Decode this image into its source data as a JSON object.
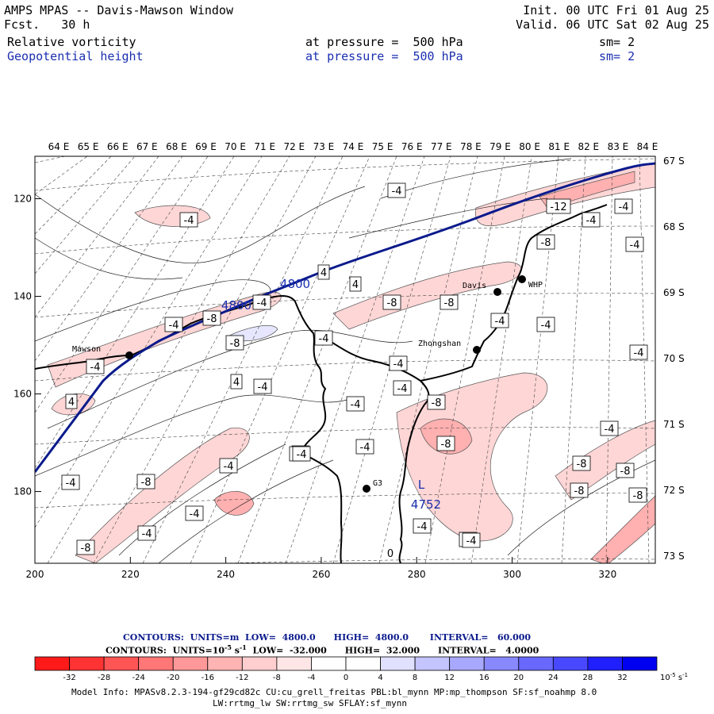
{
  "header": {
    "title": "AMPS MPAS -- Davis-Mawson Window",
    "fcst_label": "Fcst.",
    "fcst_value": "30 h",
    "init": "Init. 00 UTC Fri 01 Aug 25",
    "valid": "Valid. 06 UTC Sat 02 Aug 25",
    "field1": {
      "name": "Relative vorticity",
      "level": "at pressure =  500 hPa",
      "smooth": "sm= 2"
    },
    "field2": {
      "name": "Geopotential height",
      "level": "at pressure =  500 hPa",
      "smooth": "sm= 2"
    }
  },
  "axes": {
    "top_lon_labels": [
      "64 E",
      "65 E",
      "66 E",
      "67 E",
      "68 E",
      "69 E",
      "70 E",
      "71 E",
      "72 E",
      "73 E",
      "74 E",
      "75 E",
      "76 E",
      "77 E",
      "78 E",
      "79 E",
      "80 E",
      "81 E",
      "82 E",
      "83 E",
      "84 E"
    ],
    "right_lat_labels": [
      "67 S",
      "68 S",
      "69 S",
      "70 S",
      "71 S",
      "72 S",
      "73 S"
    ],
    "bottom_x_ticks": [
      200,
      220,
      240,
      260,
      280,
      300,
      320
    ],
    "left_y_ticks": [
      120,
      140,
      160,
      180
    ]
  },
  "stations": [
    {
      "name": "Mawson"
    },
    {
      "name": "Davis"
    },
    {
      "name": "WHP"
    },
    {
      "name": "Zhongshan"
    },
    {
      "name": "G3"
    }
  ],
  "height_labels": [
    "4800",
    "4800",
    "4752"
  ],
  "low_marker": "L",
  "vorticity_labels": [
    "-4",
    "-12",
    "-4",
    "-4",
    "-8",
    "-4",
    "-4",
    "4",
    "4",
    "-8",
    "-4",
    "-8",
    "-4",
    "-8",
    "-4",
    "4",
    "-4",
    "-4",
    "-4",
    "-8",
    "-4",
    "4",
    "-4",
    "-4",
    "-4",
    "-4",
    "-4",
    "-8",
    "-8",
    "-4",
    "-8",
    "-4",
    "-4",
    "-8",
    "-4",
    "-4",
    "-8",
    "-4",
    "-8",
    "-8",
    "-8",
    "-4",
    "-8",
    "-8",
    "-4",
    "0",
    "-4"
  ],
  "contour_info": {
    "line1": {
      "label": "CONTOURS:",
      "units": "UNITS=m",
      "low": "LOW=  4800.0",
      "high": "HIGH=  4800.0",
      "interval": "INTERVAL=   60.000"
    },
    "line2": {
      "label": "CONTOURS:",
      "units": "UNITS=10",
      "units_exp": "-5",
      "units_tail": " s",
      "units_tail_exp": "-1",
      "low": "LOW=  -32.000",
      "high": "HIGH=  32.000",
      "interval": "INTERVAL=   4.0000"
    }
  },
  "colorbar": {
    "colors": [
      "#ff1a1a",
      "#ff3333",
      "#ff5555",
      "#ff7777",
      "#ff9999",
      "#ffb4b4",
      "#ffcfcf",
      "#ffe6e6",
      "#ffffff",
      "#ffffff",
      "#e0e0ff",
      "#c4c4ff",
      "#a8a8ff",
      "#8888ff",
      "#6868ff",
      "#4848ff",
      "#2020ff",
      "#0000f0"
    ],
    "tick_labels": [
      "-32",
      "-28",
      "-24",
      "-20",
      "-16",
      "-12",
      "-8",
      "-4",
      "0",
      "4",
      "8",
      "12",
      "16",
      "20",
      "24",
      "28",
      "32"
    ],
    "units": "10",
    "units_exp": "-5",
    "units_tail": " s",
    "units_tail_exp": "-1"
  },
  "model_info": {
    "line1": "Model Info: MPASv8.2.3-194-gf29cd82c CU:cu_grell_freitas PBL:bl_mynn MP:mp_thompson SF:sf_noahmp 8.0",
    "line2": "LW:rrtmg_lw SW:rrtmg_sw SFLAY:sf_mynn"
  },
  "colors": {
    "height_contour": "#0a1a8c",
    "label_blue": "#1a2fb0",
    "low_fill": "#ffeeee"
  }
}
